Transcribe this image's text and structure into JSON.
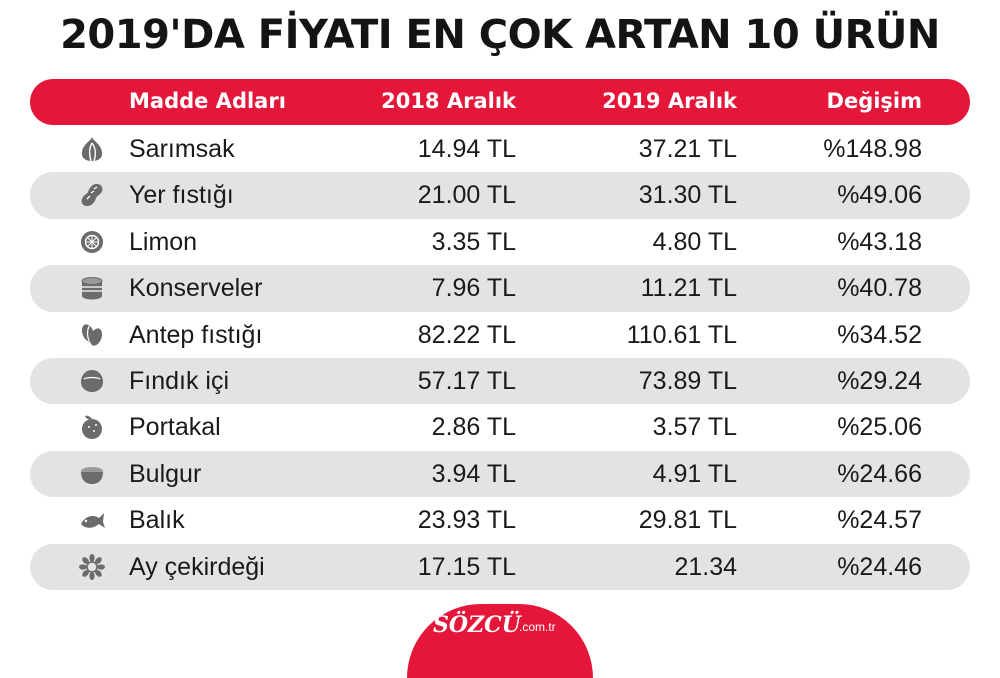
{
  "title": "2019'DA FİYATI EN ÇOK ARTAN 10 ÜRÜN",
  "header": {
    "name": "Madde Adları",
    "col_2018": "2018 Aralık",
    "col_2019": "2019 Aralık",
    "col_change": "Değişim"
  },
  "rows": [
    {
      "icon": "garlic-icon",
      "name": "Sarımsak",
      "v2018": "14.94 TL",
      "v2019": "37.21 TL",
      "change": "%148.98"
    },
    {
      "icon": "peanut-icon",
      "name": "Yer fıstığı",
      "v2018": "21.00 TL",
      "v2019": "31.30 TL",
      "change": "%49.06"
    },
    {
      "icon": "lemon-icon",
      "name": "Limon",
      "v2018": "3.35 TL",
      "v2019": "4.80 TL",
      "change": "%43.18"
    },
    {
      "icon": "can-icon",
      "name": "Konserveler",
      "v2018": "7.96 TL",
      "v2019": "11.21 TL",
      "change": "%40.78"
    },
    {
      "icon": "pistachio-icon",
      "name": "Antep fıstığı",
      "v2018": "82.22 TL",
      "v2019": "110.61 TL",
      "change": "%34.52"
    },
    {
      "icon": "hazelnut-icon",
      "name": "Fındık içi",
      "v2018": "57.17 TL",
      "v2019": "73.89 TL",
      "change": "%29.24"
    },
    {
      "icon": "orange-icon",
      "name": "Portakal",
      "v2018": "2.86 TL",
      "v2019": "3.57 TL",
      "change": "%25.06"
    },
    {
      "icon": "bowl-icon",
      "name": "Bulgur",
      "v2018": "3.94 TL",
      "v2019": "4.91 TL",
      "change": "%24.66"
    },
    {
      "icon": "fish-icon",
      "name": "Balık",
      "v2018": "23.93 TL",
      "v2019": "29.81 TL",
      "change": "%24.57"
    },
    {
      "icon": "sunflower-icon",
      "name": "Ay çekirdeği",
      "v2018": "17.15 TL",
      "v2019": "21.34",
      "change": "%24.46"
    }
  ],
  "brand": {
    "name": "SÖZCÜ",
    "domain": ".com.tr"
  },
  "colors": {
    "accent": "#e4173a",
    "row_shade": "#e3e3e3",
    "icon": "#6b6b6b"
  }
}
